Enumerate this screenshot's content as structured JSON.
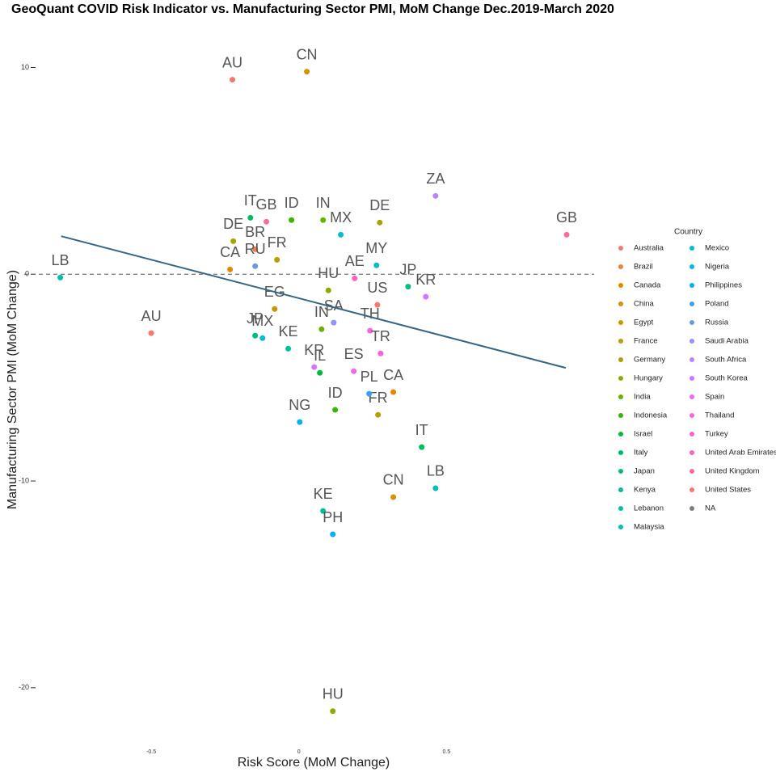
{
  "chart_data": {
    "type": "scatter",
    "title": "GeoQuant COVID Risk Indicator vs. Manufacturing Sector PMI, MoM Change Dec.2019-March 2020",
    "x_label": "Risk Score (MoM Change)",
    "y_label": "Manufacturing Sector PMI (MoM Change)",
    "legend_title": "Country",
    "legend_position": "right",
    "xlim": [
      -0.93,
      1.0
    ],
    "ylim": [
      -22.9,
      11.7
    ],
    "xticks": [
      -0.5,
      0,
      0.5
    ],
    "yticks": [
      -20,
      -10,
      0,
      10
    ],
    "hline": 0,
    "trend": {
      "color": "#336688",
      "x": [
        -0.805,
        0.904
      ],
      "values": [
        1.84,
        -4.53
      ]
    },
    "series": [
      {
        "name": "Australia",
        "color": "#F8766D",
        "x": [
          -0.225,
          -0.5
        ],
        "values": [
          9.41,
          -2.85
        ],
        "labels": [
          "AU",
          "AU"
        ]
      },
      {
        "name": "Brazil",
        "color": "#EF7F49",
        "x": [
          -0.148
        ],
        "values": [
          1.21
        ],
        "labels": [
          "BR"
        ]
      },
      {
        "name": "Canada",
        "color": "#E58700",
        "x": [
          -0.233,
          0.32
        ],
        "values": [
          0.23,
          -5.7
        ],
        "labels": [
          "CA",
          "CA"
        ]
      },
      {
        "name": "China",
        "color": "#D89000",
        "x": [
          0.027,
          0.32
        ],
        "values": [
          9.8,
          -10.78
        ],
        "labels": [
          "CN",
          "CN"
        ]
      },
      {
        "name": "Egypt",
        "color": "#C99800",
        "x": [
          -0.082
        ],
        "values": [
          -1.68
        ],
        "labels": [
          "EG"
        ]
      },
      {
        "name": "France",
        "color": "#B79F00",
        "x": [
          0.268,
          -0.074
        ],
        "values": [
          -6.8,
          0.7
        ],
        "labels": [
          "FR",
          "FR"
        ]
      },
      {
        "name": "Germany",
        "color": "#A3A500",
        "x": [
          0.274,
          -0.222
        ],
        "values": [
          2.5,
          1.6
        ],
        "labels": [
          "DE",
          "DE"
        ]
      },
      {
        "name": "Hungary",
        "color": "#8BAB00",
        "x": [
          0.115,
          0.1
        ],
        "values": [
          -21.13,
          -0.78
        ],
        "labels": [
          "HU",
          "HU"
        ]
      },
      {
        "name": "India",
        "color": "#6BB100",
        "x": [
          0.082,
          0.077
        ],
        "values": [
          2.62,
          -2.66
        ],
        "labels": [
          "IN",
          "IN"
        ]
      },
      {
        "name": "Indonesia",
        "color": "#39B600",
        "x": [
          0.123,
          -0.025
        ],
        "values": [
          -6.56,
          2.62
        ],
        "labels": [
          "ID",
          "ID"
        ]
      },
      {
        "name": "Israel",
        "color": "#00BA38",
        "x": [
          0.071
        ],
        "values": [
          -4.77
        ],
        "labels": [
          "IL"
        ]
      },
      {
        "name": "Italy",
        "color": "#00BD5C",
        "x": [
          0.416,
          -0.164
        ],
        "values": [
          -8.36,
          2.73
        ],
        "labels": [
          "IT",
          "IT"
        ]
      },
      {
        "name": "Japan",
        "color": "#00BF7D",
        "x": [
          -0.148,
          0.37
        ],
        "values": [
          -2.97,
          -0.6
        ],
        "labels": [
          "JP",
          "JP"
        ]
      },
      {
        "name": "Kenya",
        "color": "#00C098",
        "x": [
          0.082,
          -0.036
        ],
        "values": [
          -11.45,
          -3.6
        ],
        "labels": [
          "KE",
          "KE"
        ]
      },
      {
        "name": "Lebanon",
        "color": "#00C0B0",
        "x": [
          -0.808,
          0.463
        ],
        "values": [
          -0.16,
          -10.35
        ],
        "labels": [
          "LB",
          "LB"
        ]
      },
      {
        "name": "Malaysia",
        "color": "#00BFC4",
        "x": [
          0.263
        ],
        "values": [
          0.43
        ],
        "labels": [
          "MY"
        ]
      },
      {
        "name": "Mexico",
        "color": "#00BCD8",
        "x": [
          0.142,
          -0.123
        ],
        "values": [
          1.91,
          -3.09
        ],
        "labels": [
          "MX",
          "MX"
        ]
      },
      {
        "name": "Nigeria",
        "color": "#00B6EB",
        "x": [
          0.003
        ],
        "values": [
          -7.15
        ],
        "labels": [
          "NG"
        ]
      },
      {
        "name": "Philippines",
        "color": "#00B0F6",
        "x": [
          0.115
        ],
        "values": [
          -12.58
        ],
        "labels": [
          "PH"
        ]
      },
      {
        "name": "Poland",
        "color": "#35A2FF",
        "x": [
          0.238
        ],
        "values": [
          -5.78
        ],
        "labels": [
          "PL"
        ]
      },
      {
        "name": "Russia",
        "color": "#6A98E8",
        "x": [
          -0.148
        ],
        "values": [
          0.39
        ],
        "labels": [
          "RU"
        ]
      },
      {
        "name": "Saudi Arabia",
        "color": "#9590FF",
        "x": [
          0.118
        ],
        "values": [
          -2.34
        ],
        "labels": [
          "SA"
        ]
      },
      {
        "name": "South Africa",
        "color": "#B983FF",
        "x": [
          0.463
        ],
        "values": [
          3.79
        ],
        "labels": [
          "ZA"
        ]
      },
      {
        "name": "South Korea",
        "color": "#D575FE",
        "x": [
          0.052,
          0.43
        ],
        "values": [
          -4.49,
          -1.09
        ],
        "labels": [
          "KR",
          "KR"
        ]
      },
      {
        "name": "Spain",
        "color": "#E76BF3",
        "x": [
          0.186
        ],
        "values": [
          -4.69
        ],
        "labels": [
          "ES"
        ]
      },
      {
        "name": "Thailand",
        "color": "#F564E3",
        "x": [
          0.241
        ],
        "values": [
          -2.73
        ],
        "labels": [
          "TH"
        ]
      },
      {
        "name": "Turkey",
        "color": "#FD61D1",
        "x": [
          0.277
        ],
        "values": [
          -3.83
        ],
        "labels": [
          "TR"
        ]
      },
      {
        "name": "United Arab Emirates",
        "color": "#FF62BC",
        "x": [
          0.189
        ],
        "values": [
          -0.2
        ],
        "labels": [
          "AE"
        ]
      },
      {
        "name": "United Kingdom",
        "color": "#FF6A98",
        "x": [
          0.907,
          -0.11
        ],
        "values": [
          1.91,
          2.54
        ],
        "labels": [
          "GB",
          "GB"
        ]
      },
      {
        "name": "United States",
        "color": "#F8766D",
        "x": [
          0.266
        ],
        "values": [
          -1.48
        ],
        "labels": [
          "US"
        ]
      },
      {
        "name": "NA",
        "color": "#7F7F7F",
        "x": [],
        "values": [],
        "labels": []
      }
    ]
  }
}
